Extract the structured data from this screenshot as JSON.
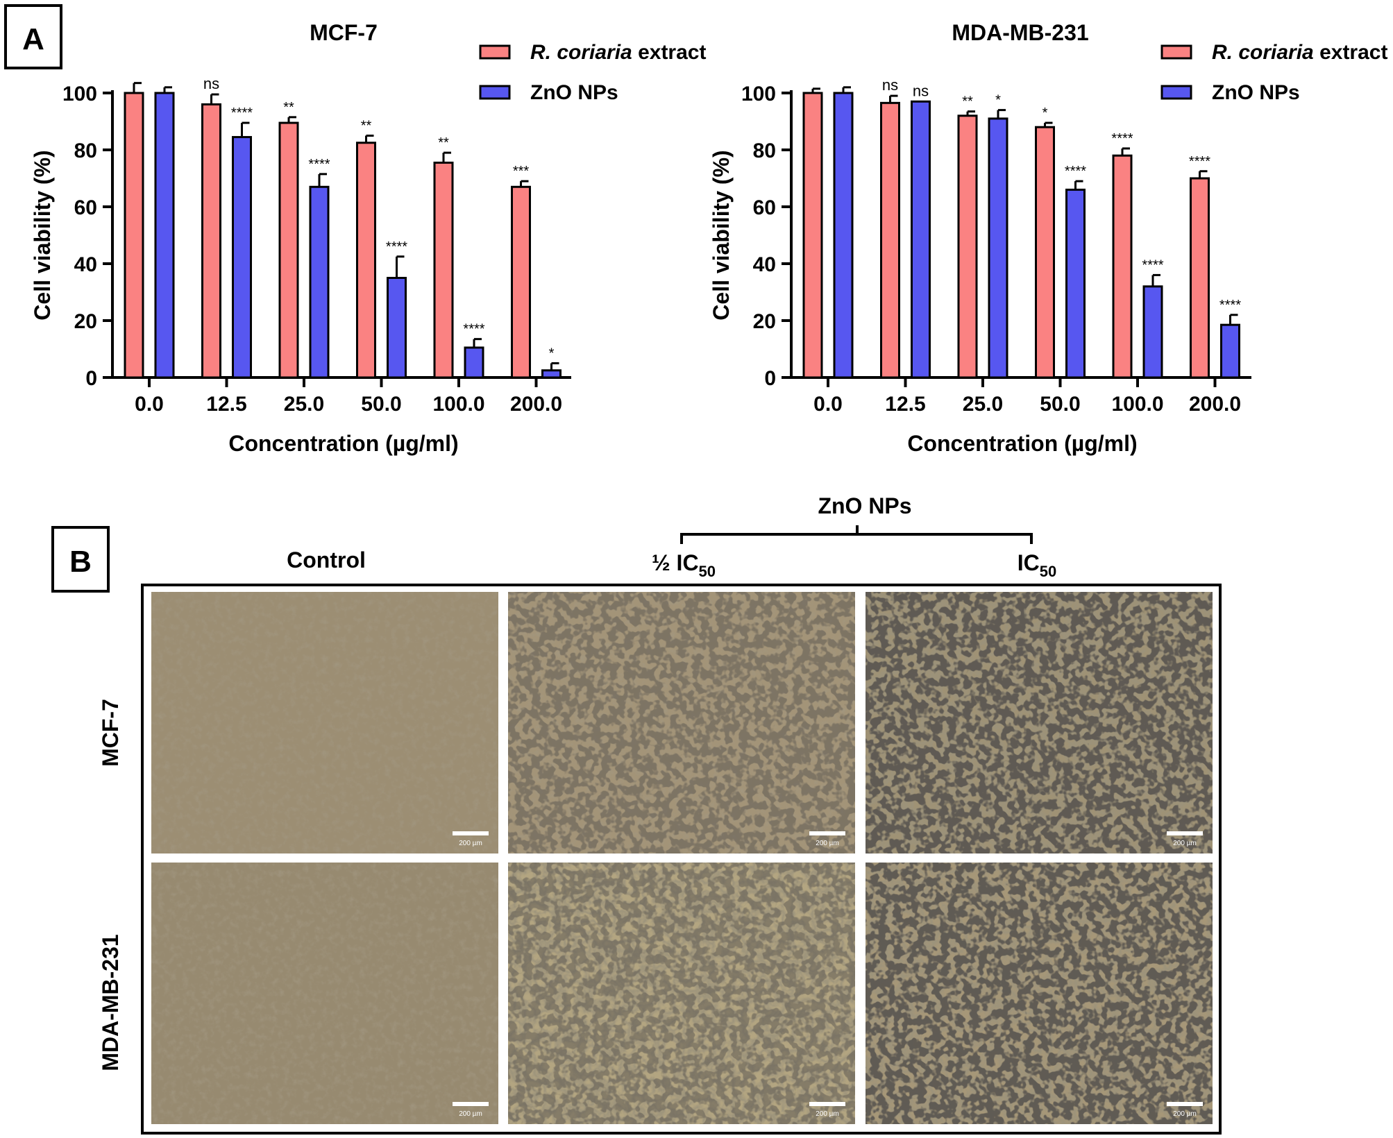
{
  "panels": {
    "a_label": "A",
    "b_label": "B"
  },
  "colors": {
    "extract": "#fa8282",
    "zno": "#5757f0",
    "axis": "#000000"
  },
  "chart_data": [
    {
      "type": "bar",
      "title": "MCF-7",
      "xlabel": "Concentration (µg/ml)",
      "ylabel": "Cell viability (%)",
      "ylim": [
        0,
        100
      ],
      "yticks": [
        "0",
        "20",
        "40",
        "60",
        "80",
        "100"
      ],
      "categories": [
        "0.0",
        "12.5",
        "25.0",
        "50.0",
        "100.0",
        "200.0"
      ],
      "legend_position": "top-right",
      "series": [
        {
          "name_italic": "R. coriaria",
          "name_rest": " extract",
          "values": [
            100,
            96,
            89.5,
            82.5,
            75.5,
            67
          ],
          "errors": [
            3.5,
            3.5,
            2,
            2.5,
            3.5,
            2
          ],
          "annotations": [
            "",
            "ns",
            "**",
            "**",
            "**",
            "***"
          ]
        },
        {
          "name_italic": "",
          "name_rest": "ZnO NPs",
          "values": [
            100,
            84.5,
            67,
            35,
            10.5,
            2.5
          ],
          "errors": [
            2,
            5,
            4.5,
            7.5,
            3,
            2.5
          ],
          "annotations": [
            "",
            "****",
            "****",
            "****",
            "****",
            "*"
          ]
        }
      ]
    },
    {
      "type": "bar",
      "title": "MDA-MB-231",
      "xlabel": "Concentration (µg/ml)",
      "ylabel": "Cell viability (%)",
      "ylim": [
        0,
        100
      ],
      "yticks": [
        "0",
        "20",
        "40",
        "60",
        "80",
        "100"
      ],
      "categories": [
        "0.0",
        "12.5",
        "25.0",
        "50.0",
        "100.0",
        "200.0"
      ],
      "legend_position": "top-right",
      "series": [
        {
          "name_italic": "R. coriaria",
          "name_rest": " extract",
          "values": [
            100,
            96.5,
            92,
            88,
            78,
            70
          ],
          "errors": [
            1.5,
            2.5,
            1.5,
            1.5,
            2.5,
            2.5
          ],
          "annotations": [
            "",
            "ns",
            "**",
            "*",
            "****",
            "****"
          ]
        },
        {
          "name_italic": "",
          "name_rest": "ZnO NPs",
          "values": [
            100,
            97,
            91,
            66,
            32,
            18.5
          ],
          "errors": [
            2,
            0,
            3,
            3,
            4,
            3.5
          ],
          "annotations": [
            "",
            "ns",
            "*",
            "****",
            "****",
            "****"
          ]
        }
      ]
    }
  ],
  "micrographs": {
    "group_label": "ZnO NPs",
    "columns": [
      {
        "prefix": "",
        "main": "Control",
        "sub": ""
      },
      {
        "prefix": "½ ",
        "main": "IC",
        "sub": "50"
      },
      {
        "prefix": "",
        "main": "IC",
        "sub": "50"
      }
    ],
    "rows": [
      "MCF-7",
      "MDA-MB-231"
    ],
    "scale_bar": "200 µm"
  }
}
